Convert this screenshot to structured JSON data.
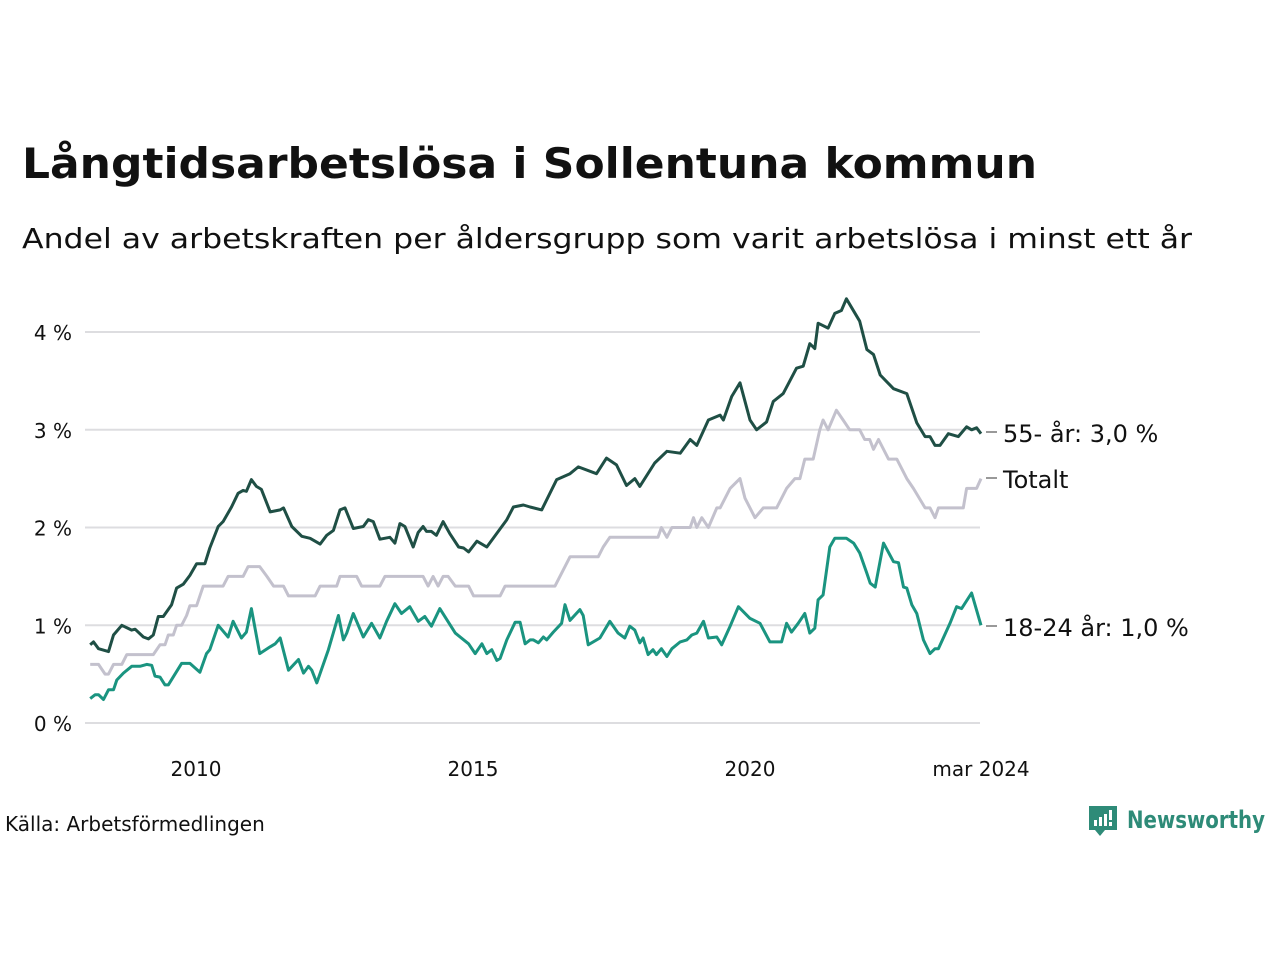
{
  "chart_data": {
    "type": "line",
    "title": "Långtidsarbetslösa i Sollentuna kommun",
    "subtitle": "Andel av arbetskraften per åldersgrupp som varit arbetslösa i minst ett år",
    "xlabel": "",
    "ylabel": "",
    "ylim": [
      0,
      4.4
    ],
    "xlim": [
      2008.08,
      2024.17
    ],
    "grid": true,
    "y_ticks": [
      {
        "value": 0,
        "label": "0 %"
      },
      {
        "value": 1,
        "label": "1 %"
      },
      {
        "value": 2,
        "label": "2 %"
      },
      {
        "value": 3,
        "label": "3 %"
      },
      {
        "value": 4,
        "label": "4 %"
      }
    ],
    "x_ticks": [
      {
        "value": 2010,
        "label": "2010"
      },
      {
        "value": 2015,
        "label": "2015"
      },
      {
        "value": 2020,
        "label": "2020"
      },
      {
        "value": 2024.17,
        "label": "mar 2024"
      }
    ],
    "series": [
      {
        "name": "55- år",
        "end_label": "55- år: 3,0 %",
        "color": "#1f4f45",
        "x": [
          2008.09,
          2008.15,
          2008.24,
          2008.42,
          2008.51,
          2008.66,
          2008.84,
          2008.9,
          2009.05,
          2009.14,
          2009.23,
          2009.32,
          2009.41,
          2009.56,
          2009.65,
          2009.77,
          2009.89,
          2010.01,
          2010.16,
          2010.25,
          2010.4,
          2010.49,
          2010.64,
          2010.76,
          2010.85,
          2010.91,
          2011.0,
          2011.09,
          2011.18,
          2011.34,
          2011.52,
          2011.58,
          2011.73,
          2011.91,
          2012.06,
          2012.24,
          2012.36,
          2012.48,
          2012.6,
          2012.69,
          2012.84,
          2013.02,
          2013.11,
          2013.2,
          2013.32,
          2013.5,
          2013.59,
          2013.68,
          2013.77,
          2013.92,
          2014.01,
          2014.1,
          2014.16,
          2014.25,
          2014.34,
          2014.46,
          2014.58,
          2014.74,
          2014.83,
          2014.92,
          2015.07,
          2015.25,
          2015.43,
          2015.61,
          2015.73,
          2015.91,
          2016.03,
          2016.24,
          2016.51,
          2016.75,
          2016.9,
          2017.23,
          2017.41,
          2017.59,
          2017.77,
          2017.92,
          2018.01,
          2018.28,
          2018.5,
          2018.74,
          2018.92,
          2019.04,
          2019.25,
          2019.46,
          2019.52,
          2019.67,
          2019.82,
          2020.0,
          2020.12,
          2020.3,
          2020.42,
          2020.6,
          2020.84,
          2020.96,
          2021.08,
          2021.17,
          2021.23,
          2021.41,
          2021.53,
          2021.65,
          2021.74,
          2021.98,
          2022.11,
          2022.23,
          2022.35,
          2022.59,
          2022.83,
          2023.01,
          2023.16,
          2023.25,
          2023.34,
          2023.43,
          2023.58,
          2023.76,
          2023.91,
          2024.0,
          2024.09,
          2024.17
        ],
        "values": [
          0.8,
          0.83,
          0.76,
          0.73,
          0.9,
          1.0,
          0.95,
          0.96,
          0.88,
          0.86,
          0.9,
          1.09,
          1.09,
          1.21,
          1.38,
          1.42,
          1.51,
          1.63,
          1.63,
          1.79,
          2.01,
          2.06,
          2.21,
          2.35,
          2.38,
          2.37,
          2.49,
          2.42,
          2.39,
          2.16,
          2.18,
          2.2,
          2.01,
          1.91,
          1.89,
          1.83,
          1.92,
          1.97,
          2.18,
          2.2,
          1.99,
          2.01,
          2.08,
          2.06,
          1.88,
          1.9,
          1.84,
          2.04,
          2.01,
          1.8,
          1.95,
          2.01,
          1.96,
          1.96,
          1.92,
          2.06,
          1.94,
          1.8,
          1.79,
          1.75,
          1.86,
          1.8,
          1.94,
          2.08,
          2.21,
          2.23,
          2.21,
          2.18,
          2.49,
          2.55,
          2.62,
          2.55,
          2.71,
          2.64,
          2.43,
          2.5,
          2.42,
          2.66,
          2.78,
          2.76,
          2.9,
          2.84,
          3.1,
          3.15,
          3.1,
          3.34,
          3.48,
          3.1,
          3.0,
          3.08,
          3.29,
          3.37,
          3.63,
          3.65,
          3.88,
          3.83,
          4.09,
          4.04,
          4.19,
          4.22,
          4.34,
          4.11,
          3.82,
          3.77,
          3.56,
          3.42,
          3.37,
          3.07,
          2.93,
          2.93,
          2.84,
          2.84,
          2.96,
          2.93,
          3.03,
          3.0,
          3.02,
          2.96
        ]
      },
      {
        "name": "Totalt",
        "end_label": "Totalt",
        "color": "#c3c1cd",
        "x": [
          2008.09,
          2008.24,
          2008.36,
          2008.42,
          2008.51,
          2008.66,
          2008.75,
          2009.23,
          2009.35,
          2009.44,
          2009.5,
          2009.59,
          2009.65,
          2009.74,
          2009.83,
          2009.89,
          2010.01,
          2010.13,
          2010.49,
          2010.58,
          2010.85,
          2010.94,
          2011.15,
          2011.28,
          2011.4,
          2011.58,
          2011.67,
          2012.15,
          2012.24,
          2012.54,
          2012.6,
          2012.9,
          2012.99,
          2013.32,
          2013.41,
          2014.1,
          2014.19,
          2014.28,
          2014.37,
          2014.46,
          2014.55,
          2014.68,
          2014.92,
          2015.01,
          2015.49,
          2015.58,
          2016.48,
          2016.75,
          2017.26,
          2017.35,
          2017.47,
          2018.34,
          2018.4,
          2018.5,
          2018.59,
          2018.92,
          2018.98,
          2019.04,
          2019.13,
          2019.25,
          2019.4,
          2019.46,
          2019.64,
          2019.82,
          2019.91,
          2020.09,
          2020.24,
          2020.48,
          2020.66,
          2020.81,
          2020.9,
          2020.99,
          2021.14,
          2021.26,
          2021.32,
          2021.41,
          2021.56,
          2021.68,
          2021.8,
          2021.98,
          2022.07,
          2022.16,
          2022.23,
          2022.32,
          2022.5,
          2022.65,
          2022.83,
          2022.95,
          2023.16,
          2023.25,
          2023.34,
          2023.4,
          2023.85,
          2023.91,
          2024.09,
          2024.17
        ],
        "values": [
          0.6,
          0.6,
          0.5,
          0.5,
          0.6,
          0.6,
          0.7,
          0.7,
          0.8,
          0.8,
          0.9,
          0.9,
          1.0,
          1.0,
          1.1,
          1.2,
          1.2,
          1.4,
          1.4,
          1.5,
          1.5,
          1.6,
          1.6,
          1.5,
          1.4,
          1.4,
          1.3,
          1.3,
          1.4,
          1.4,
          1.5,
          1.5,
          1.4,
          1.4,
          1.5,
          1.5,
          1.4,
          1.5,
          1.4,
          1.5,
          1.5,
          1.4,
          1.4,
          1.3,
          1.3,
          1.4,
          1.4,
          1.7,
          1.7,
          1.8,
          1.9,
          1.9,
          2.0,
          1.9,
          2.0,
          2.0,
          2.1,
          2.0,
          2.1,
          2.0,
          2.2,
          2.2,
          2.4,
          2.5,
          2.3,
          2.1,
          2.2,
          2.2,
          2.4,
          2.5,
          2.5,
          2.7,
          2.7,
          3.0,
          3.1,
          3.0,
          3.2,
          3.1,
          3.0,
          3.0,
          2.9,
          2.9,
          2.8,
          2.9,
          2.7,
          2.7,
          2.5,
          2.4,
          2.2,
          2.2,
          2.1,
          2.2,
          2.2,
          2.4,
          2.4,
          2.5
        ]
      },
      {
        "name": "18-24 år",
        "end_label": "18-24 år: 1,0 %",
        "color": "#1a9480",
        "x": [
          2008.09,
          2008.18,
          2008.24,
          2008.33,
          2008.42,
          2008.51,
          2008.57,
          2008.69,
          2008.84,
          2008.99,
          2009.11,
          2009.2,
          2009.26,
          2009.35,
          2009.44,
          2009.5,
          2009.74,
          2009.89,
          2010.07,
          2010.19,
          2010.25,
          2010.4,
          2010.58,
          2010.67,
          2010.82,
          2010.91,
          2011.0,
          2011.15,
          2011.34,
          2011.43,
          2011.52,
          2011.67,
          2011.85,
          2011.94,
          2012.03,
          2012.09,
          2012.18,
          2012.39,
          2012.57,
          2012.66,
          2012.72,
          2012.84,
          2013.02,
          2013.17,
          2013.32,
          2013.44,
          2013.59,
          2013.71,
          2013.86,
          2014.01,
          2014.13,
          2014.25,
          2014.4,
          2014.68,
          2014.92,
          2015.04,
          2015.16,
          2015.25,
          2015.34,
          2015.43,
          2015.49,
          2015.61,
          2015.76,
          2015.85,
          2015.94,
          2016.03,
          2016.09,
          2016.18,
          2016.27,
          2016.33,
          2016.45,
          2016.6,
          2016.66,
          2016.75,
          2016.93,
          2016.99,
          2017.08,
          2017.29,
          2017.47,
          2017.62,
          2017.74,
          2017.83,
          2017.92,
          2018.01,
          2018.07,
          2018.16,
          2018.25,
          2018.31,
          2018.4,
          2018.5,
          2018.59,
          2018.74,
          2018.86,
          2018.95,
          2019.04,
          2019.16,
          2019.25,
          2019.4,
          2019.49,
          2019.64,
          2019.79,
          2020.0,
          2020.18,
          2020.36,
          2020.57,
          2020.66,
          2020.75,
          2020.87,
          2020.99,
          2021.08,
          2021.17,
          2021.23,
          2021.32,
          2021.44,
          2021.53,
          2021.74,
          2021.87,
          2021.98,
          2022.11,
          2022.17,
          2022.26,
          2022.41,
          2022.59,
          2022.68,
          2022.77,
          2022.83,
          2022.92,
          2023.01,
          2023.13,
          2023.25,
          2023.34,
          2023.4,
          2023.61,
          2023.73,
          2023.82,
          2024.0,
          2024.17
        ],
        "values": [
          0.25,
          0.29,
          0.29,
          0.24,
          0.34,
          0.34,
          0.44,
          0.51,
          0.58,
          0.58,
          0.6,
          0.59,
          0.48,
          0.47,
          0.39,
          0.39,
          0.61,
          0.61,
          0.52,
          0.71,
          0.75,
          1.0,
          0.88,
          1.04,
          0.87,
          0.93,
          1.17,
          0.71,
          0.78,
          0.81,
          0.87,
          0.54,
          0.65,
          0.51,
          0.58,
          0.54,
          0.41,
          0.75,
          1.1,
          0.85,
          0.92,
          1.12,
          0.88,
          1.02,
          0.87,
          1.04,
          1.22,
          1.12,
          1.19,
          1.04,
          1.09,
          0.99,
          1.17,
          0.92,
          0.81,
          0.71,
          0.81,
          0.71,
          0.75,
          0.64,
          0.66,
          0.85,
          1.03,
          1.03,
          0.81,
          0.85,
          0.85,
          0.82,
          0.88,
          0.85,
          0.93,
          1.02,
          1.21,
          1.05,
          1.16,
          1.1,
          0.8,
          0.87,
          1.04,
          0.92,
          0.87,
          0.99,
          0.95,
          0.82,
          0.87,
          0.7,
          0.75,
          0.7,
          0.76,
          0.68,
          0.76,
          0.83,
          0.85,
          0.9,
          0.92,
          1.04,
          0.87,
          0.88,
          0.8,
          0.99,
          1.19,
          1.07,
          1.02,
          0.83,
          0.83,
          1.02,
          0.93,
          1.02,
          1.12,
          0.92,
          0.97,
          1.26,
          1.31,
          1.8,
          1.89,
          1.89,
          1.84,
          1.74,
          1.53,
          1.43,
          1.39,
          1.84,
          1.65,
          1.64,
          1.39,
          1.38,
          1.21,
          1.12,
          0.85,
          0.71,
          0.76,
          0.76,
          1.02,
          1.19,
          1.17,
          1.33,
          1.0
        ]
      }
    ],
    "source": "Källa: Arbetsförmedlingen",
    "brand": "Newsworthy",
    "colors": {
      "grid": "#dddde0",
      "brand": "#2e8b78"
    }
  }
}
